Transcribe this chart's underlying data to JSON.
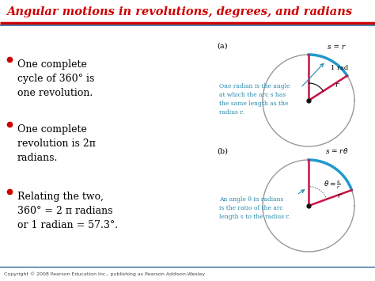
{
  "title": "Angular motions in revolutions, degrees, and radians",
  "title_color": "#cc0000",
  "background_color": "#ffffff",
  "bullet_color": "#cc0000",
  "text_color": "#000000",
  "cyan_color": "#2288aa",
  "bullet_points": [
    "One complete\ncycle of 360° is\none revolution.",
    "One complete\nrevolution is 2π\nradians.",
    "Relating the two,\n360° = 2 π radians\nor 1 radian = 57.3°."
  ],
  "circle_color": "#999999",
  "arc_color": "#2299cc",
  "radius_color": "#cc1144",
  "divider_red": "#cc0000",
  "divider_blue": "#336699",
  "copyright": "Copyright © 2008 Pearson Education Inc., publishing as Pearson Addison-Wesley",
  "fig_width": 4.74,
  "fig_height": 3.55,
  "dpi": 100
}
